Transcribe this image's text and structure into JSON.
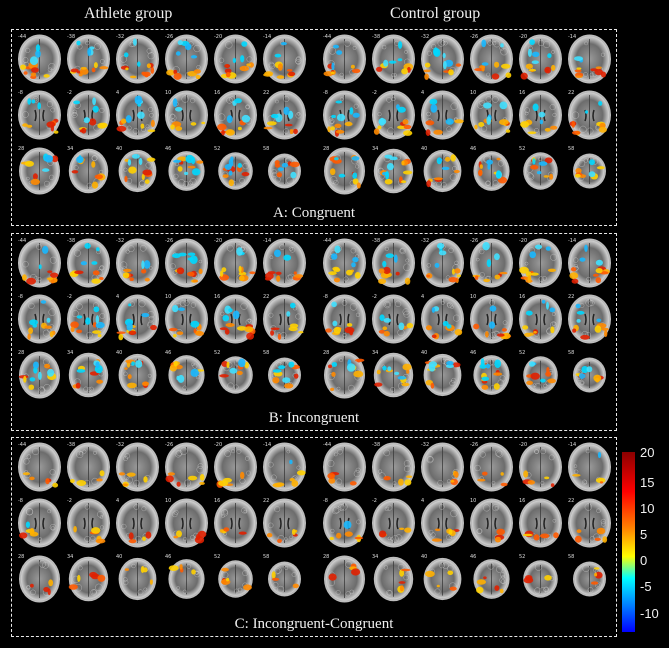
{
  "columns": {
    "left": "Athlete group",
    "right": "Control group"
  },
  "panels": [
    {
      "label": "A: Congruent",
      "pattern": "strong"
    },
    {
      "label": "B: Incongruent",
      "pattern": "strong"
    },
    {
      "label": "C: Incongruent-Congruent",
      "pattern": "diff"
    }
  ],
  "slice_labels": [
    "-44",
    "-38",
    "-32",
    "-26",
    "-20",
    "-14",
    "-8",
    "-2",
    "4",
    "10",
    "16",
    "22",
    "28",
    "34",
    "40",
    "46",
    "52",
    "58"
  ],
  "colorbar": {
    "ticks": [
      "20",
      "15",
      "10",
      "5",
      "0",
      "-5",
      "-10"
    ],
    "colors": [
      "#8b0000",
      "#ff0000",
      "#ff8000",
      "#ffff00",
      "#00ffff",
      "#0080ff",
      "#0000ff"
    ]
  }
}
